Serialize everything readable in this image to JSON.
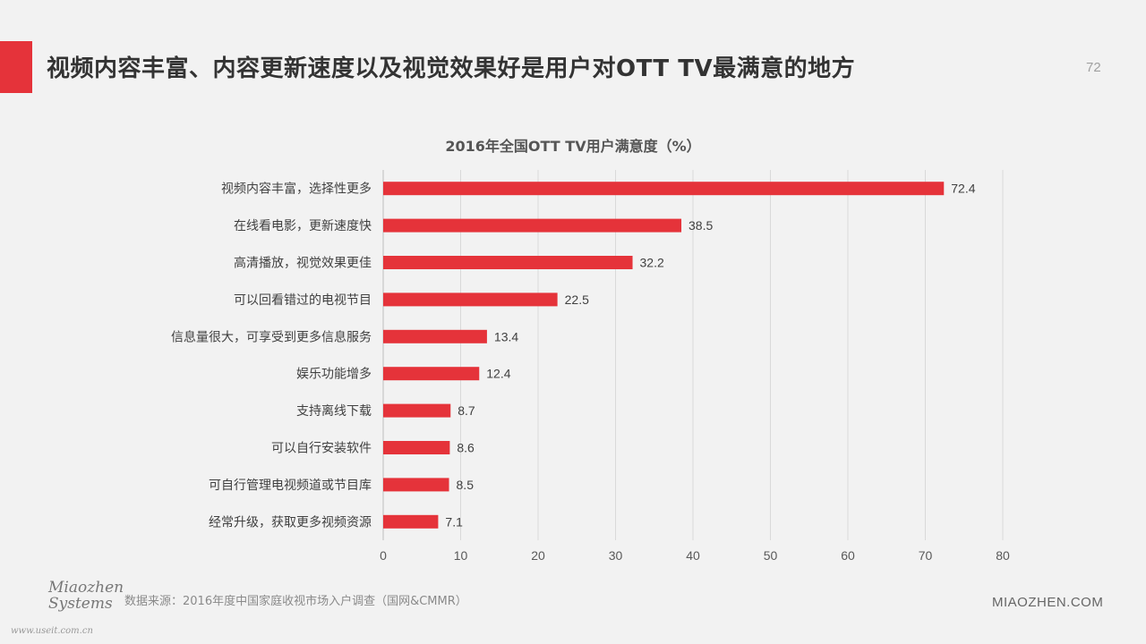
{
  "slide": {
    "title": "视频内容丰富、内容更新速度以及视觉效果好是用户对OTT TV最满意的地方",
    "page_number": "72",
    "source": "数据来源：2016年度中国家庭收视市场入户调查（国网&CMMR）",
    "logo_line1": "Miaozhen",
    "logo_line2": "Systems",
    "watermark": "www.useit.com.cn",
    "brand": "MIAOZHEN.COM"
  },
  "colors": {
    "accent": "#e5333a",
    "bar": "#e5333a",
    "grid": "#d9d9d9",
    "background": "#f2f2f2"
  },
  "chart_data": {
    "type": "bar",
    "orientation": "horizontal",
    "title": "2016年全国OTT TV用户满意度（%）",
    "categories": [
      "视频内容丰富，选择性更多",
      "在线看电影，更新速度快",
      "高清播放，视觉效果更佳",
      "可以回看错过的电视节目",
      "信息量很大，可享受到更多信息服务",
      "娱乐功能增多",
      "支持离线下载",
      "可以自行安装软件",
      "可自行管理电视频道或节目库",
      "经常升级，获取更多视频资源"
    ],
    "values": [
      72.4,
      38.5,
      32.2,
      22.5,
      13.4,
      12.4,
      8.7,
      8.6,
      8.5,
      7.1
    ],
    "value_labels": [
      "72.4",
      "38.5",
      "32.2",
      "22.5",
      "13.4",
      "12.4",
      "8.7",
      "8.6",
      "8.5",
      "7.1"
    ],
    "xlim": [
      0,
      80
    ],
    "x_ticks": [
      "0",
      "10",
      "20",
      "30",
      "40",
      "50",
      "60",
      "70",
      "80"
    ],
    "xlabel": "",
    "ylabel": "",
    "grid": "vertical"
  }
}
